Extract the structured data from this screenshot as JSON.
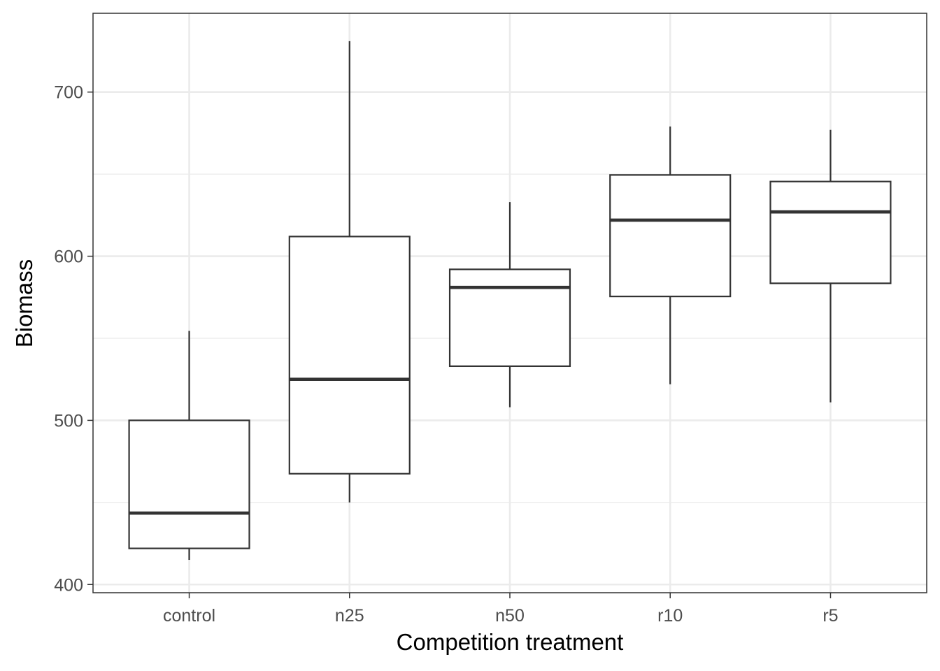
{
  "chart_data": {
    "type": "boxplot",
    "title": "",
    "xlabel": "Competition treatment",
    "ylabel": "Biomass",
    "ylim": [
      395,
      748
    ],
    "yticks": [
      400,
      500,
      600,
      700
    ],
    "yminor": [
      450,
      550,
      650
    ],
    "grid": true,
    "categories": [
      "control",
      "n25",
      "n50",
      "r10",
      "r5"
    ],
    "boxes": [
      {
        "category": "control",
        "min": 415,
        "q1": 422,
        "median": 443.5,
        "q3": 500,
        "max": 554.5
      },
      {
        "category": "n25",
        "min": 450,
        "q1": 467.5,
        "median": 525,
        "q3": 612,
        "max": 731
      },
      {
        "category": "n50",
        "min": 508,
        "q1": 533,
        "median": 581,
        "q3": 592,
        "max": 633
      },
      {
        "category": "r10",
        "min": 522,
        "q1": 575.5,
        "median": 622,
        "q3": 649.5,
        "max": 679
      },
      {
        "category": "r5",
        "min": 511,
        "q1": 583.5,
        "median": 627,
        "q3": 645.5,
        "max": 677
      }
    ]
  }
}
